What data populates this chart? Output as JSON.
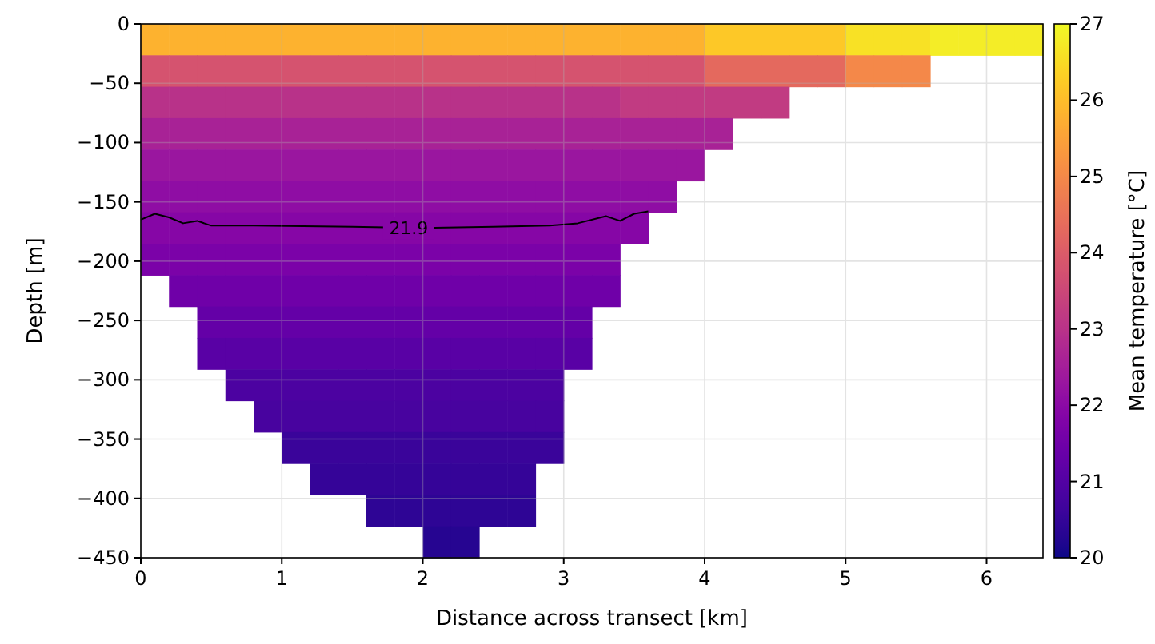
{
  "chart_data": {
    "type": "heatmap",
    "xlabel": "Distance across transect [km]",
    "ylabel": "Depth [m]",
    "clabel": "Mean temperature [°C]",
    "cells": [
      [
        25.8,
        25.8,
        25.8,
        25.8,
        25.8,
        25.8,
        25.8,
        25.8,
        25.8,
        25.8,
        25.8,
        25.8,
        25.8,
        25.8,
        25.8,
        25.8,
        25.8,
        25.8,
        25.8,
        25.8,
        26.2,
        26.2,
        26.2,
        26.2,
        26.2,
        26.6,
        26.6,
        26.6,
        26.8,
        26.8,
        26.8,
        26.8
      ],
      [
        23.8,
        23.8,
        23.8,
        23.8,
        23.8,
        23.8,
        23.8,
        23.8,
        23.8,
        23.8,
        23.8,
        23.8,
        23.8,
        23.8,
        23.8,
        23.8,
        23.8,
        23.8,
        23.8,
        23.8,
        24.3,
        24.3,
        24.3,
        24.3,
        24.3,
        25.0,
        25.0,
        25.0,
        null,
        null,
        null,
        null
      ],
      [
        23.0,
        23.0,
        23.0,
        23.0,
        23.0,
        23.0,
        23.0,
        23.0,
        23.0,
        23.0,
        23.0,
        23.0,
        23.0,
        23.0,
        23.0,
        23.0,
        23.0,
        23.2,
        23.2,
        23.2,
        23.2,
        23.2,
        23.2,
        null,
        null,
        null,
        null,
        null,
        null,
        null,
        null,
        null
      ],
      [
        22.6,
        22.6,
        22.6,
        22.6,
        22.6,
        22.6,
        22.6,
        22.6,
        22.6,
        22.6,
        22.6,
        22.6,
        22.6,
        22.6,
        22.6,
        22.6,
        22.6,
        22.6,
        22.6,
        22.6,
        22.6,
        null,
        null,
        null,
        null,
        null,
        null,
        null,
        null,
        null,
        null,
        null
      ],
      [
        22.3,
        22.3,
        22.3,
        22.3,
        22.3,
        22.3,
        22.3,
        22.3,
        22.3,
        22.3,
        22.3,
        22.3,
        22.3,
        22.3,
        22.3,
        22.3,
        22.3,
        22.3,
        22.3,
        22.3,
        null,
        null,
        null,
        null,
        null,
        null,
        null,
        null,
        null,
        null,
        null,
        null
      ],
      [
        22.1,
        22.1,
        22.1,
        22.1,
        22.1,
        22.1,
        22.1,
        22.1,
        22.1,
        22.1,
        22.1,
        22.1,
        22.1,
        22.1,
        22.1,
        22.1,
        22.1,
        22.1,
        22.1,
        null,
        null,
        null,
        null,
        null,
        null,
        null,
        null,
        null,
        null,
        null,
        null,
        null
      ],
      [
        21.9,
        21.9,
        21.9,
        21.9,
        21.9,
        21.9,
        21.9,
        21.9,
        21.9,
        21.9,
        21.9,
        21.9,
        21.9,
        21.9,
        21.9,
        21.9,
        21.9,
        21.9,
        null,
        null,
        null,
        null,
        null,
        null,
        null,
        null,
        null,
        null,
        null,
        null,
        null,
        null
      ],
      [
        21.7,
        21.7,
        21.7,
        21.7,
        21.7,
        21.7,
        21.7,
        21.7,
        21.7,
        21.7,
        21.7,
        21.7,
        21.7,
        21.7,
        21.7,
        21.7,
        21.7,
        null,
        null,
        null,
        null,
        null,
        null,
        null,
        null,
        null,
        null,
        null,
        null,
        null,
        null,
        null
      ],
      [
        null,
        21.5,
        21.5,
        21.5,
        21.5,
        21.5,
        21.5,
        21.5,
        21.5,
        21.5,
        21.5,
        21.5,
        21.5,
        21.5,
        21.5,
        21.5,
        21.5,
        null,
        null,
        null,
        null,
        null,
        null,
        null,
        null,
        null,
        null,
        null,
        null,
        null,
        null,
        null
      ],
      [
        null,
        null,
        21.3,
        21.3,
        21.3,
        21.3,
        21.3,
        21.3,
        21.3,
        21.3,
        21.3,
        21.3,
        21.3,
        21.3,
        21.3,
        21.3,
        null,
        null,
        null,
        null,
        null,
        null,
        null,
        null,
        null,
        null,
        null,
        null,
        null,
        null,
        null,
        null
      ],
      [
        null,
        null,
        21.1,
        21.1,
        21.1,
        21.1,
        21.1,
        21.1,
        21.1,
        21.1,
        21.1,
        21.1,
        21.1,
        21.1,
        21.1,
        21.1,
        null,
        null,
        null,
        null,
        null,
        null,
        null,
        null,
        null,
        null,
        null,
        null,
        null,
        null,
        null,
        null
      ],
      [
        null,
        null,
        null,
        20.9,
        20.9,
        20.9,
        20.9,
        20.9,
        20.9,
        20.9,
        20.9,
        20.9,
        20.9,
        20.9,
        20.9,
        null,
        null,
        null,
        null,
        null,
        null,
        null,
        null,
        null,
        null,
        null,
        null,
        null,
        null,
        null,
        null,
        null
      ],
      [
        null,
        null,
        null,
        null,
        20.8,
        20.8,
        20.8,
        20.8,
        20.8,
        20.8,
        20.8,
        20.8,
        20.8,
        20.8,
        20.8,
        null,
        null,
        null,
        null,
        null,
        null,
        null,
        null,
        null,
        null,
        null,
        null,
        null,
        null,
        null,
        null,
        null
      ],
      [
        null,
        null,
        null,
        null,
        null,
        20.6,
        20.6,
        20.6,
        20.6,
        20.6,
        20.6,
        20.6,
        20.6,
        20.6,
        20.6,
        null,
        null,
        null,
        null,
        null,
        null,
        null,
        null,
        null,
        null,
        null,
        null,
        null,
        null,
        null,
        null,
        null
      ],
      [
        null,
        null,
        null,
        null,
        null,
        null,
        20.5,
        20.5,
        20.5,
        20.5,
        20.5,
        20.5,
        20.5,
        20.5,
        null,
        null,
        null,
        null,
        null,
        null,
        null,
        null,
        null,
        null,
        null,
        null,
        null,
        null,
        null,
        null,
        null,
        null
      ],
      [
        null,
        null,
        null,
        null,
        null,
        null,
        null,
        null,
        20.4,
        20.4,
        20.4,
        20.4,
        20.4,
        20.4,
        null,
        null,
        null,
        null,
        null,
        null,
        null,
        null,
        null,
        null,
        null,
        null,
        null,
        null,
        null,
        null,
        null,
        null
      ],
      [
        null,
        null,
        null,
        null,
        null,
        null,
        null,
        null,
        null,
        null,
        20.3,
        20.3,
        null,
        null,
        null,
        null,
        null,
        null,
        null,
        null,
        null,
        null,
        null,
        null,
        null,
        null,
        null,
        null,
        null,
        null,
        null,
        null
      ]
    ],
    "clim": [
      20,
      27
    ],
    "cticks": [
      20,
      21,
      22,
      23,
      24,
      25,
      26,
      27
    ],
    "xlim": [
      0,
      6.4
    ],
    "xticks": [
      0,
      1,
      2,
      3,
      4,
      5,
      6
    ],
    "ylim": [
      -450,
      0
    ],
    "yticks": [
      {
        "value": -450,
        "label": "−450"
      },
      {
        "value": -400,
        "label": "−400"
      },
      {
        "value": -350,
        "label": "−350"
      },
      {
        "value": -300,
        "label": "−300"
      },
      {
        "value": -250,
        "label": "−250"
      },
      {
        "value": -200,
        "label": "−200"
      },
      {
        "value": -150,
        "label": "−150"
      },
      {
        "value": -100,
        "label": "−100"
      },
      {
        "value": -50,
        "label": "−50"
      },
      0
    ],
    "grid": true,
    "series": [
      {
        "type": "line",
        "color": "#000000",
        "x": [
          0,
          0.1,
          0.2,
          0.3,
          0.4,
          0.5,
          0.8,
          1.5,
          2.0,
          2.5,
          2.9,
          3.1,
          3.3,
          3.4,
          3.5,
          3.6
        ],
        "values": [
          -165,
          -160,
          -163,
          -168,
          -166,
          -170,
          -170,
          -171,
          -172,
          -171,
          -170,
          -168,
          -162,
          -166,
          -160,
          -158
        ]
      }
    ],
    "annotations": [
      {
        "text": "21.9",
        "x": 1.9,
        "y": -172
      }
    ]
  }
}
